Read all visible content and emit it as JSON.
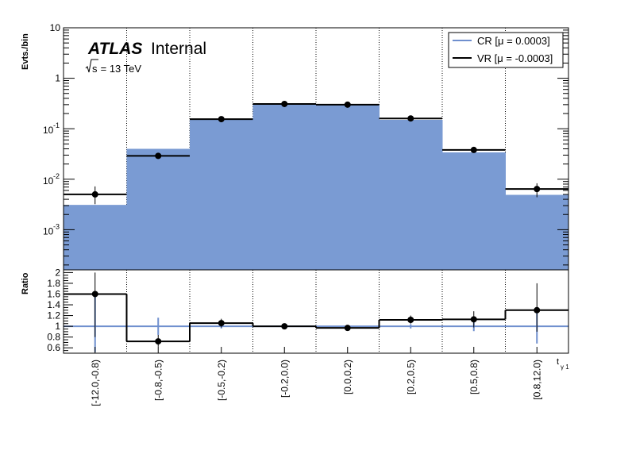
{
  "header": {
    "experiment": "ATLAS",
    "status": "Internal",
    "energy_prefix": "s",
    "energy_suffix": " = 13 TeV"
  },
  "legend": {
    "items": [
      {
        "label": "CR [μ = 0.0003]",
        "color": "#6f8fce"
      },
      {
        "label": "VR [μ = -0.0003]",
        "color": "#000000"
      }
    ]
  },
  "axes": {
    "main_ylabel": "Evts./bin",
    "ratio_ylabel": "Ratio",
    "xlabel": "t",
    "xlabel_sub": "γ 1",
    "main_yticks": [
      {
        "base": "10",
        "exp": "-3",
        "value": 0.001
      },
      {
        "base": "10",
        "exp": "-2",
        "value": 0.01
      },
      {
        "base": "10",
        "exp": "-1",
        "value": 0.1
      },
      {
        "base": "1",
        "exp": "",
        "value": 1
      },
      {
        "base": "10",
        "exp": "",
        "value": 10
      }
    ],
    "ratio_yticks": [
      "0.6",
      "0.8",
      "1",
      "1.2",
      "1.4",
      "1.6",
      "1.8",
      "2"
    ]
  },
  "chart_data": [
    {
      "type": "bar",
      "panel": "main",
      "categories": [
        "[-12.0,-0.8)",
        "[-0.8,-0.5)",
        "[-0.5,-0.2)",
        "[-0.2,0.0)",
        "[0.0,0.2)",
        "[0.2,0.5)",
        "[0.5,0.8)",
        "[0.8,12.0)"
      ],
      "series": [
        {
          "name": "CR [μ = 0.0003]",
          "style": "filled-histogram",
          "color": "#7a9bd3",
          "values": [
            0.0031,
            0.04,
            0.155,
            0.31,
            0.3,
            0.15,
            0.034,
            0.0049
          ]
        },
        {
          "name": "VR [μ = -0.0003]",
          "style": "step-with-points",
          "color": "#000000",
          "values": [
            0.005,
            0.029,
            0.155,
            0.31,
            0.3,
            0.16,
            0.038,
            0.0064
          ],
          "err_low": [
            0.0032,
            0.026,
            0.145,
            0.295,
            0.285,
            0.15,
            0.035,
            0.0044
          ],
          "err_high": [
            0.0072,
            0.032,
            0.165,
            0.325,
            0.315,
            0.17,
            0.041,
            0.0083
          ]
        }
      ],
      "ylabel": "Evts./bin",
      "yscale": "log",
      "ylim": [
        0.00016,
        10
      ]
    },
    {
      "type": "line",
      "panel": "ratio",
      "categories": [
        "[-12.0,-0.8)",
        "[-0.8,-0.5)",
        "[-0.5,-0.2)",
        "[-0.2,0.0)",
        "[0.0,0.2)",
        "[0.2,0.5)",
        "[0.5,0.8)",
        "[0.8,12.0)"
      ],
      "series": [
        {
          "name": "VR/CR",
          "values": [
            1.6,
            0.72,
            1.06,
            1.0,
            0.97,
            1.12,
            1.13,
            1.3
          ],
          "err_low": [
            0.8,
            0.62,
            0.98,
            0.96,
            0.93,
            1.05,
            0.98,
            0.9
          ],
          "err_high": [
            2.0,
            0.84,
            1.14,
            1.04,
            1.01,
            1.2,
            1.28,
            1.8
          ]
        },
        {
          "name": "CR unc.",
          "values": [
            1.0,
            1.0,
            1.0,
            1.0,
            1.0,
            1.0,
            1.0,
            1.0
          ],
          "err_low": [
            0.52,
            0.84,
            0.96,
            0.99,
            0.99,
            0.96,
            0.91,
            0.68
          ],
          "err_high": [
            1.6,
            1.16,
            1.04,
            1.01,
            1.01,
            1.04,
            1.09,
            1.32
          ]
        }
      ],
      "ylabel": "Ratio",
      "xlabel": "t",
      "ylim": [
        0.5,
        2.05
      ],
      "reference_line": 1.0
    }
  ]
}
